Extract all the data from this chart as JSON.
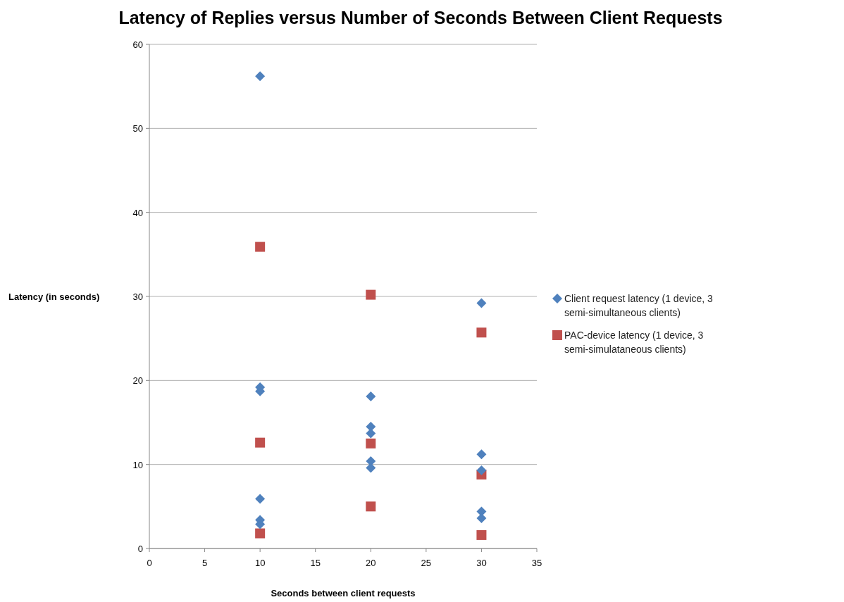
{
  "chart_data": {
    "type": "scatter",
    "title": "Latency of Replies versus Number of Seconds Between Client Requests",
    "xlabel": "Seconds between client requests",
    "ylabel": "Latency (in seconds)",
    "xlim": [
      0,
      35
    ],
    "xticks": [
      0,
      5,
      10,
      15,
      20,
      25,
      30,
      35
    ],
    "ylim": [
      0,
      60
    ],
    "yticks": [
      0,
      10,
      20,
      30,
      40,
      50,
      60
    ],
    "grid": "y",
    "legend": "right",
    "series": [
      {
        "name": "Client request latency (1 device, 3 semi-simultaneous clients)",
        "color": "#4f81bd",
        "marker": "diamond",
        "x": [
          10,
          10,
          10,
          10,
          10,
          10,
          20,
          20,
          20,
          20,
          20,
          30,
          30,
          30,
          30,
          30
        ],
        "values": [
          56.2,
          19.2,
          18.7,
          5.9,
          3.4,
          2.9,
          18.1,
          14.5,
          13.7,
          10.4,
          9.6,
          29.2,
          11.2,
          9.3,
          4.4,
          3.6
        ]
      },
      {
        "name": "PAC-device latency (1 device, 3 semi-simulataneous clients)",
        "color": "#c0504d",
        "marker": "square",
        "x": [
          10,
          10,
          10,
          20,
          20,
          20,
          30,
          30,
          30
        ],
        "values": [
          35.9,
          12.6,
          1.8,
          30.2,
          12.5,
          5.0,
          25.7,
          8.8,
          1.6
        ]
      }
    ]
  }
}
